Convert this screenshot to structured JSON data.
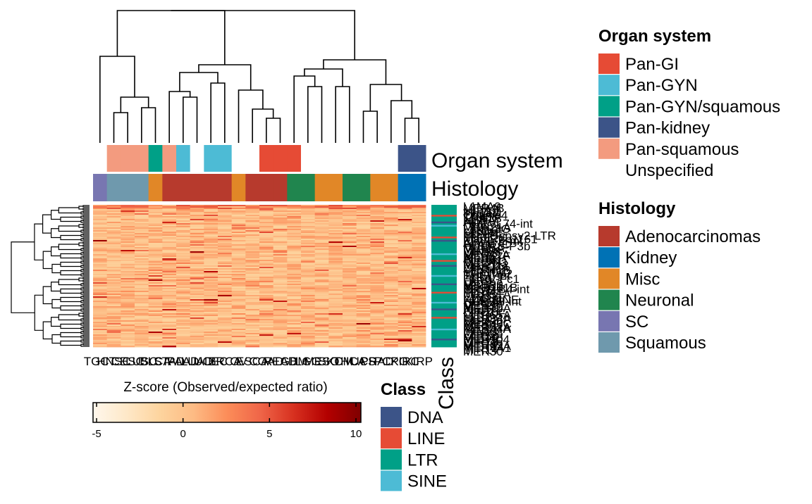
{
  "chart_data": {
    "type": "heatmap",
    "columns": [
      "TGCT",
      "HNSC",
      "CESC",
      "LUSC",
      "BLCA",
      "STAD",
      "PAAD",
      "LUAD",
      "UCEC",
      "BRCA",
      "OV",
      "ESCA",
      "COAD",
      "READ",
      "GBM",
      "LGG",
      "MESO",
      "SKCM",
      "THCA",
      "UCS",
      "PRAD",
      "PCPG",
      "KIRC",
      "KIRP"
    ],
    "organ_system_row": [
      "Unspecified",
      "Pan-squamous",
      "Pan-squamous",
      "Pan-squamous",
      "Pan-GYN/squamous",
      "Pan-squamous",
      "Pan-GYN",
      "Unspecified",
      "Pan-GYN",
      "Pan-GYN",
      "Unspecified",
      "Unspecified",
      "Pan-GI",
      "Pan-GI",
      "Pan-GI",
      "Unspecified",
      "Unspecified",
      "Unspecified",
      "Unspecified",
      "Unspecified",
      "Unspecified",
      "Unspecified",
      "Pan-kidney",
      "Pan-kidney"
    ],
    "histology_row": [
      "SC",
      "Squamous",
      "Squamous",
      "Squamous",
      "Misc",
      "Adenocarcinomas",
      "Adenocarcinomas",
      "Adenocarcinomas",
      "Adenocarcinomas",
      "Adenocarcinomas",
      "Misc",
      "Adenocarcinomas",
      "Adenocarcinomas",
      "Adenocarcinomas",
      "Neuronal",
      "Neuronal",
      "Misc",
      "Misc",
      "Neuronal",
      "Neuronal",
      "Misc",
      "Misc",
      "Kidney",
      "Kidney"
    ],
    "visible_row_labels": [
      "L1MA9",
      "MER4B",
      "L1PA7",
      "MLT1J",
      "Tigger1",
      "Charlie4",
      "LTR33",
      "THE1B",
      "MSTA",
      "AluY",
      "HERVL74-int",
      "L2b",
      "MER21A",
      "L1ME3G",
      "LTR16",
      "MST1E",
      "L1PB4",
      "MamGypsy2-LTR",
      "LTR12C",
      "MamRep1161",
      "ERVL-E-int",
      "Alu",
      "FLAM_C",
      "HUERS-P3b",
      "MER5A",
      "MLT1K",
      "L1MB8",
      "LTR53",
      "MER11A",
      "MER57F",
      "AluSp",
      "MER61",
      "LTR86C",
      "MLT2B3",
      "MER112",
      "L1MC4a",
      "LTR5",
      "MER41B",
      "LTR104",
      "MamTip2",
      "THE1-int",
      "L1P4",
      "HERV-Fc1",
      "LTR9",
      "L3b",
      "MER90",
      "MSTB1",
      "MER101B",
      "ERVL-B4-int",
      "MER4E",
      "LTR1",
      "MER51A",
      "LTR38",
      "L1MEg",
      "X7A_LINE",
      "HERVH-int",
      "LTR39",
      "MER77",
      "MER39",
      "MER70A",
      "AluJb",
      "LTR2B",
      "LTR10F",
      "MER65A",
      "LTR2",
      "MER34A",
      "L1PA2",
      "MER50",
      "MER46C",
      "LTR81",
      "MER31A",
      "MER44A",
      "L1MEf",
      "MER68",
      "LTR7",
      "LTR58",
      "MER48",
      "MER104",
      "LTR13",
      "LTR73",
      "MER89",
      "MER92A",
      "MER4A1",
      "LTR14",
      "MER30"
    ],
    "row_classes": [
      "LTR",
      "LTR",
      "LTR",
      "LTR",
      "LTR",
      "LTR",
      "LINE",
      "LTR",
      "LTR",
      "LTR",
      "DNA",
      "LTR",
      "SINE",
      "LTR",
      "LTR",
      "LTR",
      "LTR",
      "LTR",
      "LTR",
      "LINE",
      "LTR",
      "DNA",
      "LTR",
      "LTR",
      "LTR",
      "LTR",
      "LTR",
      "LTR",
      "LTR",
      "SINE",
      "LTR",
      "LTR",
      "LTR",
      "LINE",
      "LTR",
      "LTR",
      "DNA",
      "LTR",
      "LTR",
      "LTR",
      "LTR",
      "LTR",
      "SINE",
      "LTR",
      "LTR",
      "LTR",
      "LTR",
      "DNA",
      "LTR",
      "LTR",
      "LTR",
      "LTR",
      "LINE",
      "LTR",
      "LTR",
      "LTR",
      "LTR",
      "LTR",
      "SINE",
      "LTR",
      "LTR",
      "LTR",
      "DNA",
      "LTR",
      "LTR",
      "LTR",
      "LTR",
      "LINE",
      "LTR",
      "LTR",
      "LTR",
      "LTR",
      "LTR",
      "LTR",
      "SINE",
      "LTR",
      "LTR",
      "LTR",
      "LTR",
      "LTR",
      "DNA",
      "LTR",
      "LTR",
      "LTR",
      "LTR"
    ],
    "colorbar": {
      "title": "Z-score (Observed/expected ratio)",
      "range": [
        -5,
        10
      ],
      "ticks": [
        -5,
        0,
        5,
        10
      ],
      "colors": [
        "#fff7ec",
        "#fee8c8",
        "#fdd49e",
        "#fdbb84",
        "#fc8d59",
        "#ef6548",
        "#d7301f",
        "#b30000",
        "#7f0000"
      ]
    }
  },
  "annotation_labels": {
    "organ": "Organ system",
    "histology": "Histology",
    "class": "Class"
  },
  "legend_organ": {
    "title": "Organ system",
    "items": [
      {
        "label": "Pan-GI",
        "color": "#e64b35"
      },
      {
        "label": "Pan-GYN",
        "color": "#4dbbd5"
      },
      {
        "label": "Pan-GYN/squamous",
        "color": "#00a087"
      },
      {
        "label": "Pan-kidney",
        "color": "#3c5488"
      },
      {
        "label": "Pan-squamous",
        "color": "#f39b7f"
      },
      {
        "label": "Unspecified",
        "color": "#ffffff"
      }
    ]
  },
  "legend_histology": {
    "title": "Histology",
    "items": [
      {
        "label": "Adenocarcinomas",
        "color": "#b73a2d"
      },
      {
        "label": "Kidney",
        "color": "#0072b5"
      },
      {
        "label": "Misc",
        "color": "#e18727"
      },
      {
        "label": "Neuronal",
        "color": "#20854e"
      },
      {
        "label": "SC",
        "color": "#7876b1"
      },
      {
        "label": "Squamous",
        "color": "#6f99ad"
      }
    ]
  },
  "legend_class": {
    "title": "Class",
    "items": [
      {
        "label": "DNA",
        "color": "#3c5488"
      },
      {
        "label": "LINE",
        "color": "#e64b35"
      },
      {
        "label": "LTR",
        "color": "#00a087"
      },
      {
        "label": "SINE",
        "color": "#4dbbd5"
      }
    ]
  }
}
